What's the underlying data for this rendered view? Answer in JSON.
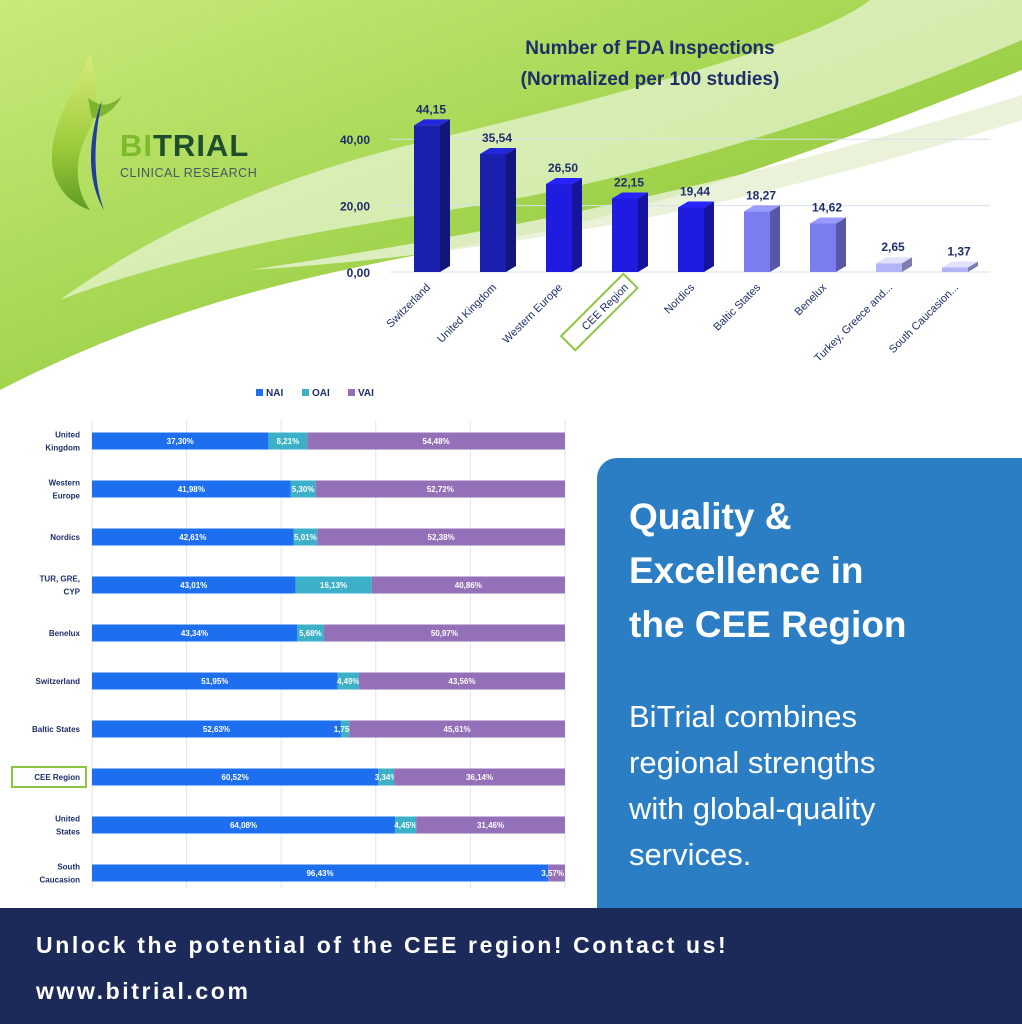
{
  "brand": {
    "name_prefix": "BI",
    "name_rest": "TRIAL",
    "tagline": "CLINICAL RESEARCH",
    "logo_icon": "drop-leaf-logo"
  },
  "colors": {
    "green_light": "#b9e06a",
    "green_dark": "#7dbb2a",
    "bar_dark": "#1a1fae",
    "bar_blue": "#1f1ce0",
    "bar_light": "#7b7cf0",
    "bar_lighter": "#b3b3f7",
    "nai": "#1e6ff0",
    "oai": "#3cb0c8",
    "vai": "#9470b8",
    "highlight": "#8cc63f",
    "panel": "#2b7ec4",
    "footer": "#1c2a5a"
  },
  "chart_data": [
    {
      "type": "bar",
      "title": "Number of FDA Inspections",
      "subtitle": "(Normalized per 100 studies)",
      "categories": [
        "Switzerland",
        "United Kingdom",
        "Western Europe",
        "CEE Region",
        "Nordics",
        "Baltic States",
        "Benelux",
        "Turkey, Greece and...",
        "South Caucasion..."
      ],
      "values": [
        44.15,
        35.54,
        26.5,
        22.15,
        19.44,
        18.27,
        14.62,
        2.65,
        1.37
      ],
      "value_labels": [
        "44,15",
        "35,54",
        "26,50",
        "22,15",
        "19,44",
        "18,27",
        "14,62",
        "2,65",
        "1,37"
      ],
      "bar_shades": [
        "dark",
        "dark",
        "blue",
        "blue",
        "blue",
        "light",
        "light",
        "lighter",
        "lighter"
      ],
      "highlight": "CEE Region",
      "ylim": [
        0,
        50
      ],
      "y_ticks": [
        0,
        20,
        40
      ],
      "y_tick_labels": [
        "0,00",
        "20,00",
        "40,00"
      ],
      "grid": true
    },
    {
      "type": "bar",
      "orientation": "horizontal",
      "stacked": true,
      "legend": [
        "NAI",
        "OAI",
        "VAI"
      ],
      "legend_position": "top",
      "categories": [
        [
          "United",
          "Kingdom"
        ],
        [
          "Western",
          "Europe"
        ],
        [
          "Nordics"
        ],
        [
          "TUR, GRE,",
          "CYP"
        ],
        [
          "Benelux"
        ],
        [
          "Switzerland"
        ],
        [
          "Baltic States"
        ],
        [
          "CEE Region"
        ],
        [
          "United",
          "States"
        ],
        [
          "South",
          "Caucasion"
        ]
      ],
      "highlight": "CEE Region",
      "series": [
        {
          "name": "NAI",
          "values": [
            37.3,
            41.98,
            42.61,
            43.01,
            43.34,
            51.95,
            52.63,
            60.52,
            64.08,
            96.43
          ],
          "labels": [
            "37,30%",
            "41,98%",
            "42,61%",
            "43,01%",
            "43,34%",
            "51,95%",
            "52,63%",
            "60,52%",
            "64,08%",
            "96,43%"
          ]
        },
        {
          "name": "OAI",
          "values": [
            8.21,
            5.3,
            5.01,
            16.13,
            5.68,
            4.49,
            1.75,
            3.34,
            4.45,
            0
          ],
          "labels": [
            "8,21%",
            "5,30%",
            "5,01%",
            "16,13%",
            "5,68%",
            "4,49%",
            "1,75%",
            "3,34%",
            "4,45%",
            ""
          ]
        },
        {
          "name": "VAI",
          "values": [
            54.48,
            52.72,
            52.38,
            40.86,
            50.97,
            43.56,
            45.61,
            36.14,
            31.46,
            3.57
          ],
          "labels": [
            "54,48%",
            "52,72%",
            "52,38%",
            "40,86%",
            "50,97%",
            "43,56%",
            "45,61%",
            "36,14%",
            "31,46%",
            "3,57%"
          ]
        }
      ],
      "xlim": [
        0,
        100
      ],
      "grid": true
    }
  ],
  "panel": {
    "heading": [
      "Quality &",
      "Excellence in",
      "the CEE Region"
    ],
    "body": [
      "BiTrial combines",
      "regional strengths",
      "with global-quality",
      "services."
    ]
  },
  "footer": {
    "cta": "Unlock the potential of the CEE region! Contact us!",
    "url": "www.bitrial.com"
  }
}
